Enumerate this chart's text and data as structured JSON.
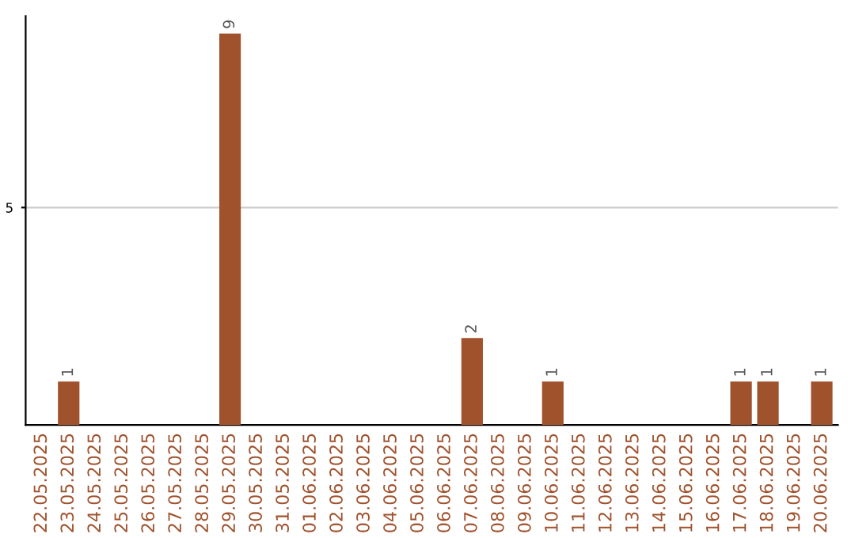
{
  "chart_data": {
    "type": "bar",
    "categories": [
      "22.05.2025",
      "23.05.2025",
      "24.05.2025",
      "25.05.2025",
      "26.05.2025",
      "27.05.2025",
      "28.05.2025",
      "29.05.2025",
      "30.05.2025",
      "31.05.2025",
      "01.06.2025",
      "02.06.2025",
      "03.06.2025",
      "04.06.2025",
      "05.06.2025",
      "06.06.2025",
      "07.06.2025",
      "08.06.2025",
      "09.06.2025",
      "10.06.2025",
      "11.06.2025",
      "12.06.2025",
      "13.06.2025",
      "14.06.2025",
      "15.06.2025",
      "16.06.2025",
      "17.06.2025",
      "18.06.2025",
      "19.06.2025",
      "20.06.2025"
    ],
    "values": [
      0,
      1,
      0,
      0,
      0,
      0,
      0,
      9,
      0,
      0,
      0,
      0,
      0,
      0,
      0,
      0,
      2,
      0,
      0,
      1,
      0,
      0,
      0,
      0,
      0,
      0,
      1,
      1,
      0,
      1
    ],
    "value_labels": [
      null,
      "1",
      null,
      null,
      null,
      null,
      null,
      "9",
      null,
      null,
      null,
      null,
      null,
      null,
      null,
      null,
      "2",
      null,
      null,
      "1",
      null,
      null,
      null,
      null,
      null,
      null,
      "1",
      "1",
      null,
      "1"
    ],
    "color": "#a0522d",
    "ylim": [
      0,
      9.4
    ],
    "yticks": [
      5
    ],
    "grid": "y"
  }
}
